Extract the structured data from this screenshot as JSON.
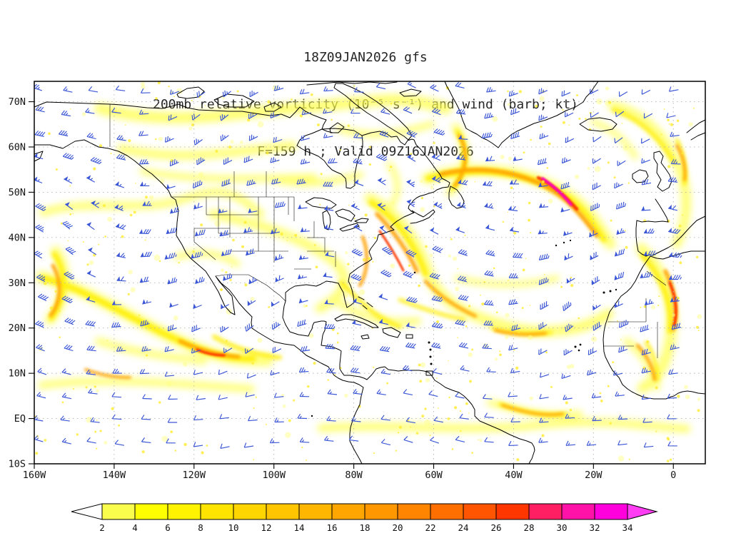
{
  "title": {
    "line1": "18Z09JAN2026 gfs",
    "line2": "200mb relative vorticity (10⁻⁵ s⁻¹) and wind (barb; kt)",
    "line3": "F=159 h ; Valid 09Z16JAN2026"
  },
  "chart_data": {
    "type": "heatmap",
    "field": "200mb relative vorticity (10^-5 s^-1), shaded",
    "overlay": "wind barbs (kt)",
    "model": "gfs",
    "run": "18Z09JAN2026",
    "forecast_hour": "F=159 h",
    "valid": "09Z16JAN2026",
    "map_extent": {
      "lon_west_deg": -160,
      "lon_east_deg": 8,
      "lat_top_deg": 74.5,
      "lat_bottom_deg": -10
    },
    "lat_ticks": [
      {
        "label": "70N",
        "deg": 70
      },
      {
        "label": "60N",
        "deg": 60
      },
      {
        "label": "50N",
        "deg": 50
      },
      {
        "label": "40N",
        "deg": 40
      },
      {
        "label": "30N",
        "deg": 30
      },
      {
        "label": "20N",
        "deg": 20
      },
      {
        "label": "10N",
        "deg": 10
      },
      {
        "label": "EQ",
        "deg": 0
      },
      {
        "label": "10S",
        "deg": -10
      }
    ],
    "lon_ticks": [
      {
        "label": "160W",
        "deg": -160
      },
      {
        "label": "140W",
        "deg": -140
      },
      {
        "label": "120W",
        "deg": -120
      },
      {
        "label": "100W",
        "deg": -100
      },
      {
        "label": "80W",
        "deg": -80
      },
      {
        "label": "60W",
        "deg": -60
      },
      {
        "label": "40W",
        "deg": -40
      },
      {
        "label": "20W",
        "deg": -20
      },
      {
        "label": "0",
        "deg": 0
      }
    ],
    "colorbar": {
      "levels": [
        2,
        4,
        6,
        8,
        10,
        12,
        14,
        16,
        18,
        20,
        22,
        24,
        26,
        28,
        30,
        32,
        34
      ],
      "cell_colors": [
        "#fbfd4d",
        "#ffff00",
        "#fff300",
        "#ffe400",
        "#ffd500",
        "#ffc600",
        "#ffb600",
        "#ffa700",
        "#ff9800",
        "#ff8500",
        "#ff6f00",
        "#ff5400",
        "#ff3600",
        "#ff1f62",
        "#ff12a8",
        "#ff00dc"
      ],
      "below_color": "#ffffff",
      "above_color": "#ff3df2"
    },
    "wind_field": {
      "barb_color": "#3a55d6",
      "grid_dx": 37,
      "grid_dy": 33,
      "units": "kt"
    },
    "grid_color": "#b3b3b3",
    "coast_color": "#000000"
  }
}
